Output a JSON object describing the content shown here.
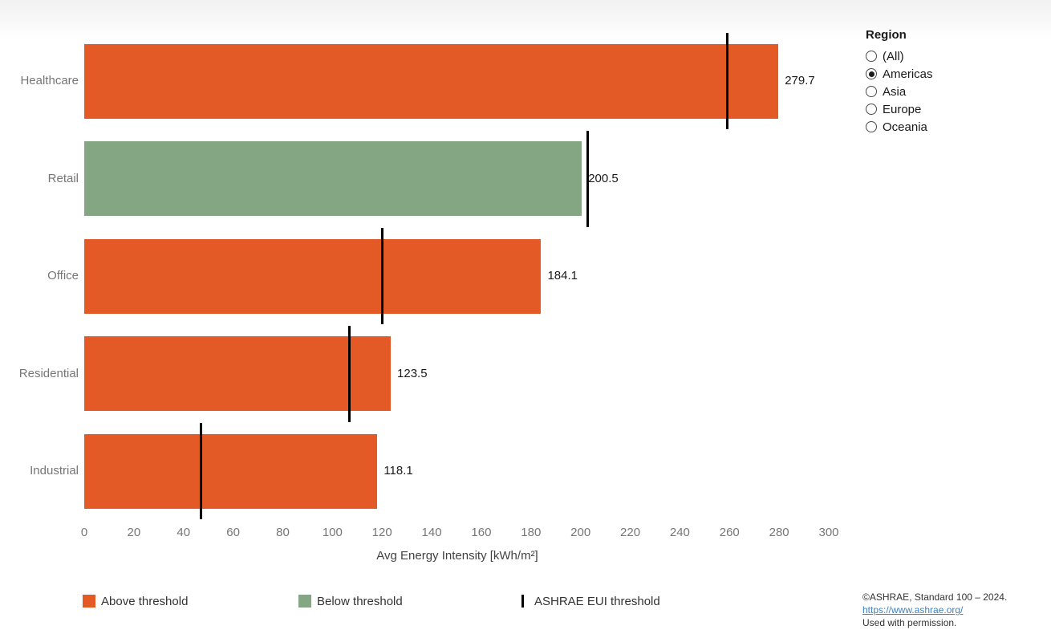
{
  "chart_data": {
    "type": "bar",
    "orientation": "horizontal",
    "title": "",
    "xlabel": "Avg Energy Intensity [kWh/m²]",
    "ylabel": "",
    "xlim": [
      0,
      300
    ],
    "x_ticks": [
      0,
      20,
      40,
      60,
      80,
      100,
      120,
      140,
      160,
      180,
      200,
      220,
      240,
      260,
      280,
      300
    ],
    "grid": false,
    "categories": [
      "Healthcare",
      "Retail",
      "Office",
      "Residential",
      "Industrial"
    ],
    "series": [
      {
        "name": "Avg Energy Intensity [kWh/m²]",
        "values": [
          279.7,
          200.5,
          184.1,
          123.5,
          118.1
        ]
      }
    ],
    "value_labels": [
      "279.7",
      "200.5",
      "184.1",
      "123.5",
      "118.1"
    ],
    "bar_status": [
      "above",
      "below",
      "above",
      "above",
      "above"
    ],
    "threshold_values_estimated": [
      259,
      203,
      120,
      107,
      47
    ],
    "threshold_name": "ASHRAE EUI threshold",
    "colors": {
      "above": "#e45a27",
      "below": "#85a683",
      "threshold": "#000000"
    },
    "legend_position": "bottom"
  },
  "region_filter": {
    "title": "Region",
    "options": [
      {
        "label": "(All)",
        "selected": false
      },
      {
        "label": "Americas",
        "selected": true
      },
      {
        "label": "Asia",
        "selected": false
      },
      {
        "label": "Europe",
        "selected": false
      },
      {
        "label": "Oceania",
        "selected": false
      }
    ]
  },
  "legend": {
    "above_label": "Above threshold",
    "below_label": "Below threshold",
    "threshold_label": "ASHRAE EUI threshold"
  },
  "axis": {
    "x_title": "Avg Energy Intensity [kWh/m²]"
  },
  "attribution": {
    "line1": "©ASHRAE, Standard 100 – 2024.",
    "link_text": "https://www.ashrae.org/",
    "line3": "Used with permission."
  }
}
